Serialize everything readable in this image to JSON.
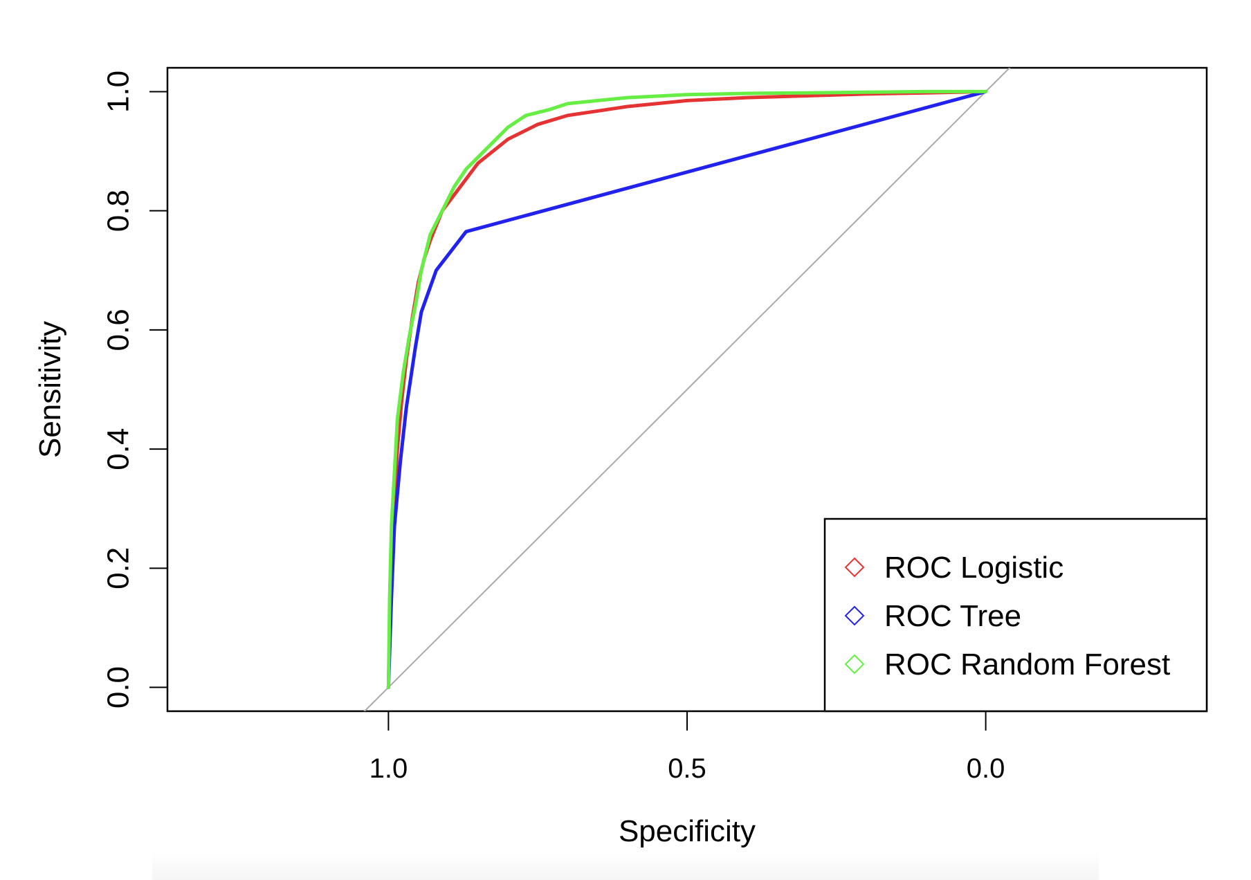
{
  "chart_data": {
    "type": "line",
    "title": "",
    "xlabel": "Specificity",
    "ylabel": "Sensitivity",
    "xlim": [
      1.37,
      -0.37
    ],
    "ylim": [
      -0.04,
      1.04
    ],
    "x_reversed": true,
    "xticks": [
      1.0,
      0.5,
      0.0
    ],
    "xtick_labels": [
      "1.0",
      "0.5",
      "0.0"
    ],
    "yticks": [
      0.0,
      0.2,
      0.4,
      0.6,
      0.8,
      1.0
    ],
    "ytick_labels": [
      "0.0",
      "0.2",
      "0.4",
      "0.6",
      "0.8",
      "1.0"
    ],
    "grid": false,
    "legend_position": "bottom-right",
    "reference_line": {
      "from": [
        1.0,
        0.0
      ],
      "to": [
        0.0,
        1.0
      ],
      "color": "#aaaaaa"
    },
    "series": [
      {
        "name": "ROC Logistic",
        "color": "#e53232",
        "specificity": [
          1.0,
          0.998,
          0.995,
          0.99,
          0.985,
          0.978,
          0.97,
          0.96,
          0.95,
          0.94,
          0.93,
          0.91,
          0.88,
          0.85,
          0.8,
          0.75,
          0.7,
          0.6,
          0.5,
          0.4,
          0.3,
          0.2,
          0.1,
          0.0
        ],
        "sensitivity": [
          0.0,
          0.1,
          0.2,
          0.3,
          0.4,
          0.48,
          0.55,
          0.62,
          0.68,
          0.72,
          0.75,
          0.8,
          0.84,
          0.88,
          0.92,
          0.945,
          0.96,
          0.975,
          0.985,
          0.99,
          0.993,
          0.996,
          0.998,
          1.0
        ]
      },
      {
        "name": "ROC Tree",
        "color": "#2222ee",
        "specificity": [
          1.0,
          0.995,
          0.99,
          0.98,
          0.97,
          0.955,
          0.945,
          0.92,
          0.87,
          0.0
        ],
        "sensitivity": [
          0.0,
          0.15,
          0.27,
          0.38,
          0.47,
          0.57,
          0.63,
          0.7,
          0.765,
          1.0
        ]
      },
      {
        "name": "ROC Random Forest",
        "color": "#66ee44",
        "specificity": [
          1.0,
          0.998,
          0.995,
          0.99,
          0.985,
          0.975,
          0.965,
          0.955,
          0.945,
          0.93,
          0.91,
          0.89,
          0.87,
          0.85,
          0.82,
          0.8,
          0.77,
          0.73,
          0.7,
          0.6,
          0.5,
          0.4,
          0.3,
          0.2,
          0.1,
          0.0
        ],
        "sensitivity": [
          0.0,
          0.15,
          0.27,
          0.36,
          0.45,
          0.53,
          0.59,
          0.64,
          0.7,
          0.76,
          0.8,
          0.84,
          0.87,
          0.89,
          0.92,
          0.94,
          0.96,
          0.97,
          0.98,
          0.99,
          0.995,
          0.997,
          0.998,
          0.999,
          1.0,
          1.0
        ]
      }
    ]
  }
}
